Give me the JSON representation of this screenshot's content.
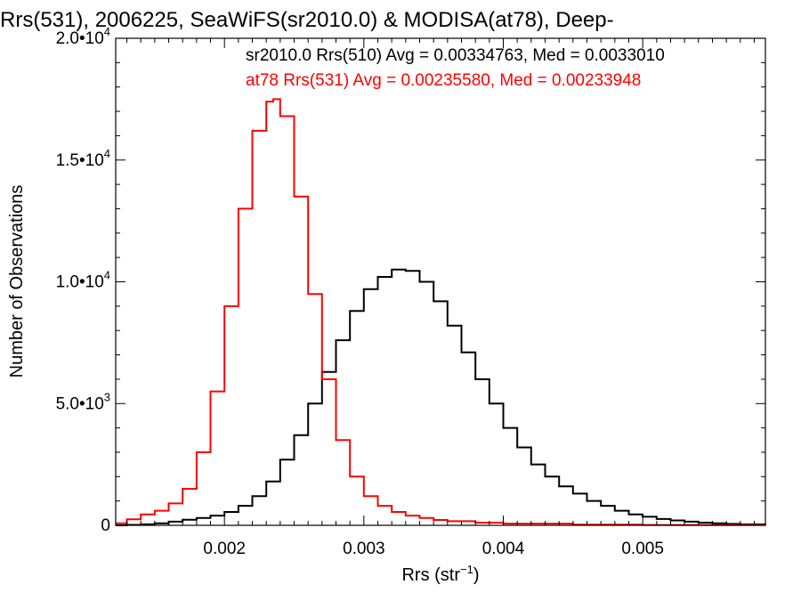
{
  "chart_data": {
    "type": "line",
    "title": "Rrs(531), 2006225, SeaWiFS(sr2010.0) & MODISA(at78), Deep-",
    "xlabel": "Rrs (str",
    "xlabel_sup": "−1",
    "xlabel_close": ")",
    "ylabel": "Number of Observations",
    "xlim": [
      0.00122,
      0.00588
    ],
    "ylim": [
      0,
      20000
    ],
    "xticks": [
      {
        "value": 0.002,
        "label": "0.002"
      },
      {
        "value": 0.003,
        "label": "0.003"
      },
      {
        "value": 0.004,
        "label": "0.004"
      },
      {
        "value": 0.005,
        "label": "0.005"
      }
    ],
    "yticks": [
      {
        "value": 0,
        "mant": "0",
        "exp": ""
      },
      {
        "value": 5000,
        "mant": "5.0•10",
        "exp": "3"
      },
      {
        "value": 10000,
        "mant": "1.0•10",
        "exp": "4"
      },
      {
        "value": 15000,
        "mant": "1.5•10",
        "exp": "4"
      },
      {
        "value": 20000,
        "mant": "2.0•10",
        "exp": "4"
      }
    ],
    "grid": false,
    "annotations": [
      {
        "text": "sr2010.0 Rrs(510) Avg = 0.00334763, Med = 0.0033010",
        "color": "#000000"
      },
      {
        "text": "at78 Rrs(531) Avg = 0.00235580, Med = 0.00233948",
        "color": "#ff0000"
      }
    ],
    "series": [
      {
        "color": "#000000",
        "x": [
          0.00122,
          0.0013,
          0.0014,
          0.0015,
          0.0016,
          0.0017,
          0.0018,
          0.0019,
          0.002,
          0.0021,
          0.0022,
          0.0023,
          0.0024,
          0.0025,
          0.0026,
          0.0027,
          0.0028,
          0.0029,
          0.003,
          0.0031,
          0.0032,
          0.0033,
          0.0034,
          0.0035,
          0.0036,
          0.0037,
          0.0038,
          0.0039,
          0.004,
          0.0041,
          0.0042,
          0.0043,
          0.0044,
          0.0045,
          0.0046,
          0.0047,
          0.0048,
          0.0049,
          0.005,
          0.0051,
          0.0052,
          0.0053,
          0.0054,
          0.0055,
          0.0056,
          0.0057,
          0.00588
        ],
        "y": [
          0,
          20,
          40,
          80,
          150,
          230,
          300,
          400,
          550,
          800,
          1200,
          1800,
          2700,
          3700,
          5000,
          6300,
          7600,
          8800,
          9700,
          10200,
          10500,
          10450,
          10000,
          9200,
          8200,
          7100,
          6000,
          5000,
          4000,
          3200,
          2500,
          2000,
          1600,
          1300,
          1000,
          800,
          600,
          450,
          350,
          260,
          200,
          150,
          110,
          80,
          60,
          40,
          20
        ]
      },
      {
        "color": "#ff0000",
        "x": [
          0.00122,
          0.0013,
          0.0014,
          0.0015,
          0.0016,
          0.0017,
          0.0018,
          0.0019,
          0.002,
          0.0021,
          0.0022,
          0.0023,
          0.00235,
          0.0024,
          0.0025,
          0.0026,
          0.0027,
          0.0028,
          0.0029,
          0.003,
          0.0031,
          0.0032,
          0.0033,
          0.0034,
          0.0035,
          0.0036,
          0.0038,
          0.004,
          0.0045,
          0.005,
          0.00588
        ],
        "y": [
          80,
          250,
          450,
          600,
          900,
          1500,
          3000,
          5500,
          9000,
          13000,
          16200,
          17400,
          17500,
          16800,
          13500,
          9500,
          6000,
          3500,
          2000,
          1200,
          800,
          550,
          400,
          300,
          220,
          170,
          110,
          70,
          30,
          15,
          5
        ]
      }
    ]
  }
}
